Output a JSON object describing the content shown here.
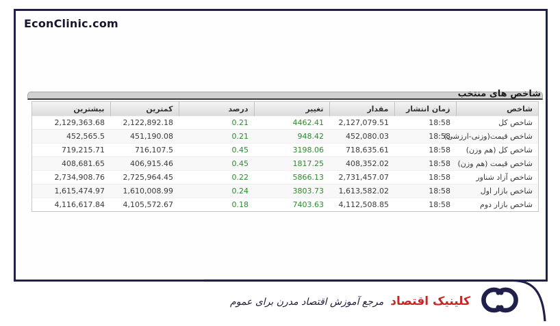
{
  "header": {
    "site": "EconClinic.com"
  },
  "panel": {
    "title": "شاخص های منتخب"
  },
  "table": {
    "headers": [
      "شاخص",
      "زمان انتشار",
      "مقدار",
      "تغییر",
      "درصد",
      "کمترین",
      "بیشترین"
    ],
    "rows": [
      {
        "index": "شاخص کل",
        "time": "18:58",
        "value": "2,127,079.51",
        "change": "4462.41",
        "percent": "0.21",
        "low": "2,122,892.18",
        "high": "2,129,363.68"
      },
      {
        "index": "شاخص قیمت(وزنی-ارزشی)",
        "time": "18:58",
        "value": "452,080.03",
        "change": "948.42",
        "percent": "0.21",
        "low": "451,190.08",
        "high": "452,565.5"
      },
      {
        "index": "شاخص کل (هم وزن)",
        "time": "18:58",
        "value": "718,635.61",
        "change": "3198.06",
        "percent": "0.45",
        "low": "716,107.5",
        "high": "719,215.71"
      },
      {
        "index": "شاخص قیمت (هم وزن)",
        "time": "18:58",
        "value": "408,352.02",
        "change": "1817.25",
        "percent": "0.45",
        "low": "406,915.46",
        "high": "408,681.65"
      },
      {
        "index": "شاخص آزاد شناور",
        "time": "18:58",
        "value": "2,731,457.07",
        "change": "5866.13",
        "percent": "0.22",
        "low": "2,725,964.45",
        "high": "2,734,908.76"
      },
      {
        "index": "شاخص بازار اول",
        "time": "18:58",
        "value": "1,613,582.02",
        "change": "3803.73",
        "percent": "0.24",
        "low": "1,610,008.99",
        "high": "1,615,474.97"
      },
      {
        "index": "شاخص بازار دوم",
        "time": "18:58",
        "value": "4,112,508.85",
        "change": "7403.63",
        "percent": "0.18",
        "low": "4,105,572.67",
        "high": "4,116,617.84"
      }
    ]
  },
  "footer": {
    "brand": "کلینیک اقتصاد",
    "tagline": "مرجع آموزش اقتصاد مدرن برای عموم",
    "logo_icon": "interlocked-rings-icon"
  },
  "colors": {
    "frame_navy": "#20204a",
    "positive_green": "#2d8a2d",
    "brand_red": "#c52727",
    "titlebar_gray": "#d0d0d0"
  }
}
